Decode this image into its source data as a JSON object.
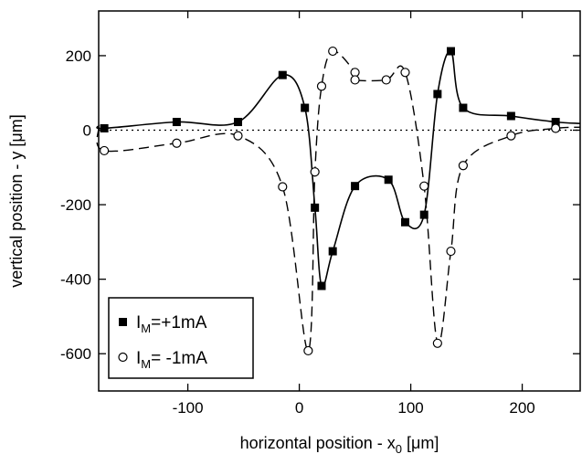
{
  "chart_data": {
    "type": "scatter",
    "xlabel": "horizontal position - x",
    "xlabel_sub": "0",
    "xlabel_unit": " [μm]",
    "ylabel": "vertical position - y [μm]",
    "xlim": [
      -180,
      252
    ],
    "ylim": [
      -700,
      320
    ],
    "x_ticks": [
      -100,
      0,
      100,
      200
    ],
    "y_ticks": [
      200,
      0,
      -200,
      -400,
      -600
    ],
    "grid": false,
    "legend_position": "bottom-left",
    "series": [
      {
        "name_main": "I",
        "name_sub": "M",
        "name_rest": "=+1mA",
        "marker": "filled-square",
        "line": "solid",
        "points": [
          {
            "x": -175,
            "y": 5
          },
          {
            "x": -110,
            "y": 22
          },
          {
            "x": -55,
            "y": 22
          },
          {
            "x": -15,
            "y": 148
          },
          {
            "x": 5,
            "y": 60
          },
          {
            "x": 14,
            "y": -208
          },
          {
            "x": 20,
            "y": -418
          },
          {
            "x": 30,
            "y": -325
          },
          {
            "x": 50,
            "y": -150
          },
          {
            "x": 80,
            "y": -133
          },
          {
            "x": 95,
            "y": -247
          },
          {
            "x": 112,
            "y": -227
          },
          {
            "x": 124,
            "y": 97
          },
          {
            "x": 136,
            "y": 212
          },
          {
            "x": 147,
            "y": 60
          },
          {
            "x": 190,
            "y": 38
          },
          {
            "x": 230,
            "y": 22
          }
        ]
      },
      {
        "name_main": "I",
        "name_sub": "M",
        "name_rest": "= -1mA",
        "marker": "open-circle",
        "line": "dashed",
        "points": [
          {
            "x": -175,
            "y": -55
          },
          {
            "x": -110,
            "y": -35
          },
          {
            "x": -55,
            "y": -15
          },
          {
            "x": -15,
            "y": -152
          },
          {
            "x": 8,
            "y": -592
          },
          {
            "x": 14,
            "y": -112
          },
          {
            "x": 20,
            "y": 118
          },
          {
            "x": 30,
            "y": 212
          },
          {
            "x": 50,
            "y": 155
          },
          {
            "x": 50,
            "y": 135
          },
          {
            "x": 78,
            "y": 135
          },
          {
            "x": 95,
            "y": 155
          },
          {
            "x": 112,
            "y": -150
          },
          {
            "x": 124,
            "y": -572
          },
          {
            "x": 136,
            "y": -325
          },
          {
            "x": 147,
            "y": -95
          },
          {
            "x": 190,
            "y": -15
          },
          {
            "x": 230,
            "y": 5
          }
        ]
      }
    ],
    "reference_line": {
      "y": 0,
      "style": "dotted"
    }
  }
}
